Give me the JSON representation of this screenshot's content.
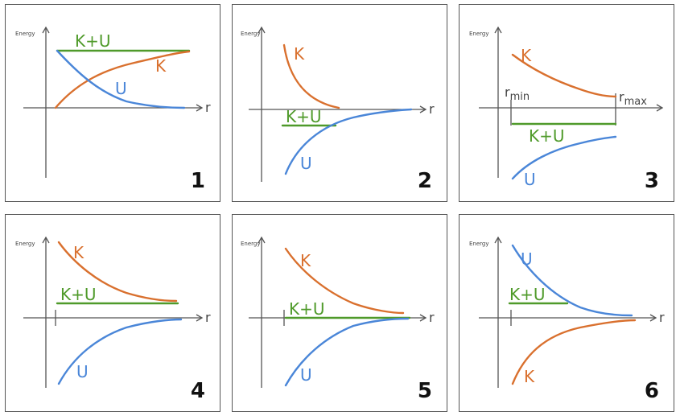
{
  "y_axis_label": "Energy",
  "x_axis_label": "r",
  "labels": {
    "total": "K+U",
    "kinetic": "K",
    "potential": "U"
  },
  "colors": {
    "total": "#4f9a2a",
    "kinetic": "#d9702e",
    "potential": "#4a86d8"
  },
  "panel3_extra": {
    "rmin_base": "r",
    "rmin_sub": "min",
    "rmax_base": "r",
    "rmax_sub": "max"
  },
  "panels": [
    {
      "number": "1"
    },
    {
      "number": "2"
    },
    {
      "number": "3"
    },
    {
      "number": "4"
    },
    {
      "number": "5"
    },
    {
      "number": "6"
    }
  ]
}
